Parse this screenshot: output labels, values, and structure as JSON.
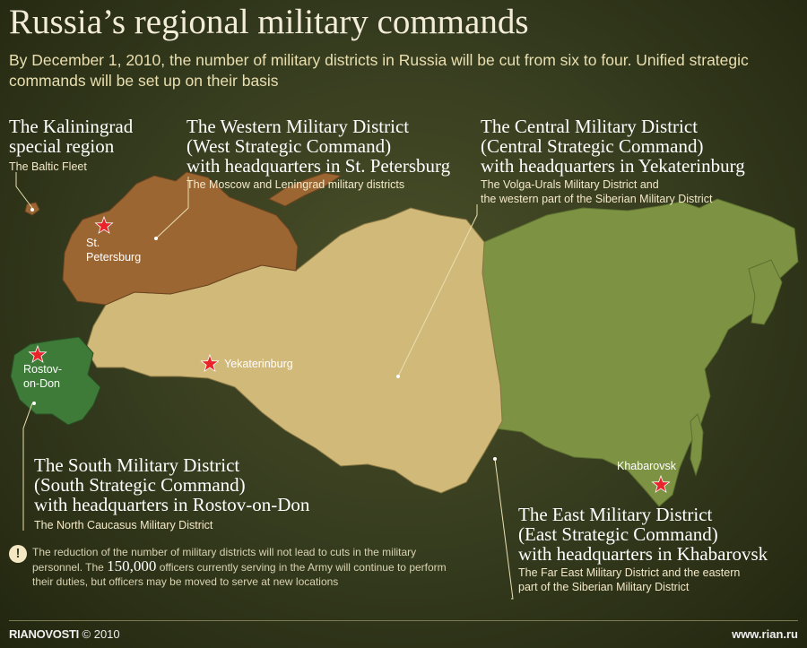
{
  "title": "Russia’s regional military commands",
  "subtitle": "By December 1, 2010, the number of military districts in Russia will be cut from six to four. Unified strategic commands will be set up on their basis",
  "regions": {
    "kaliningrad": {
      "heading": [
        "The Kaliningrad",
        "special region"
      ],
      "sub": [
        "The Baltic Fleet"
      ]
    },
    "western": {
      "heading": [
        "The Western Military District",
        "(West Strategic Command)",
        "with headquarters in St. Petersburg"
      ],
      "sub": [
        "The Moscow and Leningrad military districts"
      ],
      "color": "#9c6633"
    },
    "central": {
      "heading": [
        "The Central Military District",
        "(Central Strategic Command)",
        "with headquarters in Yekaterinburg"
      ],
      "sub": [
        "The Volga-Urals Military District and",
        "the western part of the Siberian Military District"
      ],
      "color": "#d1b979"
    },
    "south": {
      "heading": [
        "The South Military District",
        "(South Strategic Command)",
        "with headquarters in Rostov-on-Don"
      ],
      "sub": [
        "The North Caucasus Military District"
      ],
      "color": "#3f7b38"
    },
    "east": {
      "heading": [
        "The East Military District",
        "(East Strategic Command)",
        "with headquarters in Khabarovsk"
      ],
      "sub": [
        "The Far East Military District and the eastern",
        "part of the Siberian Military District"
      ],
      "color": "#7d9343"
    }
  },
  "cities": {
    "st_petersburg": [
      "St.",
      "Petersburg"
    ],
    "yekaterinburg": "Yekaterinburg",
    "rostov": [
      "Rostov-",
      "on-Don"
    ],
    "khabarovsk": "Khabarovsk"
  },
  "note": {
    "before": "The reduction of the number of military districts will not lead to cuts in the military personnel. The ",
    "number": "150,000",
    "after": " officers currently serving in the Army will continue to perform their duties, but officers may be moved to serve at new locations"
  },
  "footer": {
    "brand": "RIANOVOSTI",
    "copyright": "© 2010",
    "site": "www.rian.ru"
  }
}
